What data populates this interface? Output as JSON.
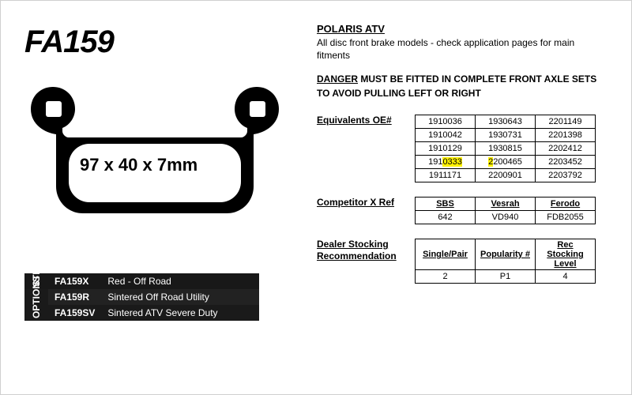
{
  "part_number": "FA159",
  "shape": {
    "dimensions": "97 x 40 x 7mm"
  },
  "vehicle": {
    "title": "POLARIS ATV",
    "description": "All disc front brake models - check application pages for main fitments"
  },
  "danger": {
    "word": "DANGER",
    "text": " MUST BE FITTED IN COMPLETE FRONT AXLE SETS TO AVOID PULLING LEFT OR RIGHT"
  },
  "equivalents": {
    "label": "Equivalents OE#",
    "rows": [
      [
        "1910036",
        "1930643",
        "2201149"
      ],
      [
        "1910042",
        "1930731",
        "2201398"
      ],
      [
        "1910129",
        "1930815",
        "2202412"
      ],
      [
        "1910333",
        "2200465",
        "2203452"
      ],
      [
        "1911171",
        "2200901",
        "2203792"
      ]
    ],
    "highlight_row_index": 3,
    "highlight_color": "#fff200"
  },
  "xref": {
    "label": "Competitor X Ref",
    "headers": [
      "SBS",
      "Vesrah",
      "Ferodo"
    ],
    "values": [
      "642",
      "VD940",
      "FDB2055"
    ]
  },
  "dealer": {
    "label_line1": "Dealer Stocking",
    "label_line2": "Recommendation",
    "headers": [
      "Single/Pair",
      "Popularity #",
      "Rec Stocking Level"
    ],
    "values": [
      "2",
      "P1",
      "4"
    ]
  },
  "variants": {
    "side_std": "STD",
    "side_opt": "OPTIONS",
    "rows": [
      {
        "code": "FA159X",
        "desc": "Red - Off Road"
      },
      {
        "code": "FA159R",
        "desc": "Sintered Off Road Utility"
      },
      {
        "code": "FA159SV",
        "desc": "Sintered ATV Severe Duty"
      }
    ]
  }
}
